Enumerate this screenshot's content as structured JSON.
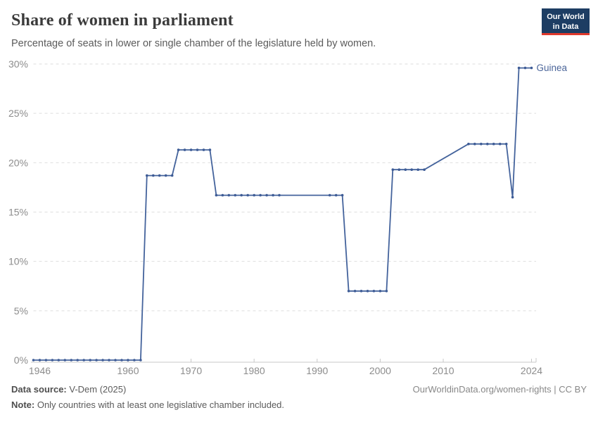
{
  "header": {
    "title": "Share of women in parliament",
    "subtitle": "Percentage of seats in lower or single chamber of the legislature held by women.",
    "logo_line1": "Our World",
    "logo_line2": "in Data"
  },
  "chart_data": {
    "type": "line",
    "title": "Share of women in parliament",
    "xlabel": "",
    "ylabel": "",
    "xlim": [
      1945,
      2024
    ],
    "ylim": [
      0,
      30
    ],
    "grid": true,
    "legend_position": "end-of-line",
    "x_ticks": [
      1946,
      1960,
      1970,
      1980,
      1990,
      2000,
      2010,
      2024
    ],
    "y_ticks": [
      0,
      5,
      10,
      15,
      20,
      25,
      30
    ],
    "y_tick_suffix": "%",
    "series": [
      {
        "name": "Guinea",
        "points": [
          [
            1945,
            0
          ],
          [
            1946,
            0
          ],
          [
            1947,
            0
          ],
          [
            1948,
            0
          ],
          [
            1949,
            0
          ],
          [
            1950,
            0
          ],
          [
            1951,
            0
          ],
          [
            1952,
            0
          ],
          [
            1953,
            0
          ],
          [
            1954,
            0
          ],
          [
            1955,
            0
          ],
          [
            1956,
            0
          ],
          [
            1957,
            0
          ],
          [
            1958,
            0
          ],
          [
            1959,
            0
          ],
          [
            1960,
            0
          ],
          [
            1961,
            0
          ],
          [
            1962,
            0
          ],
          [
            1963,
            18.7
          ],
          [
            1964,
            18.7
          ],
          [
            1965,
            18.7
          ],
          [
            1966,
            18.7
          ],
          [
            1967,
            18.7
          ],
          [
            1968,
            21.3
          ],
          [
            1969,
            21.3
          ],
          [
            1970,
            21.3
          ],
          [
            1971,
            21.3
          ],
          [
            1972,
            21.3
          ],
          [
            1973,
            21.3
          ],
          [
            1974,
            16.7
          ],
          [
            1975,
            16.7
          ],
          [
            1976,
            16.7
          ],
          [
            1977,
            16.7
          ],
          [
            1978,
            16.7
          ],
          [
            1979,
            16.7
          ],
          [
            1980,
            16.7
          ],
          [
            1981,
            16.7
          ],
          [
            1982,
            16.7
          ],
          [
            1983,
            16.7
          ],
          [
            1984,
            16.7
          ],
          [
            1992,
            16.7
          ],
          [
            1993,
            16.7
          ],
          [
            1994,
            16.7
          ],
          [
            1995,
            7
          ],
          [
            1996,
            7
          ],
          [
            1997,
            7
          ],
          [
            1998,
            7
          ],
          [
            1999,
            7
          ],
          [
            2000,
            7
          ],
          [
            2001,
            7
          ],
          [
            2002,
            19.3
          ],
          [
            2003,
            19.3
          ],
          [
            2004,
            19.3
          ],
          [
            2005,
            19.3
          ],
          [
            2006,
            19.3
          ],
          [
            2007,
            19.3
          ],
          [
            2014,
            21.9
          ],
          [
            2015,
            21.9
          ],
          [
            2016,
            21.9
          ],
          [
            2017,
            21.9
          ],
          [
            2018,
            21.9
          ],
          [
            2019,
            21.9
          ],
          [
            2020,
            21.9
          ],
          [
            2021,
            16.5
          ],
          [
            2022,
            29.6
          ],
          [
            2023,
            29.6
          ],
          [
            2024,
            29.6
          ]
        ]
      }
    ],
    "colors": {
      "line": "#44639c",
      "marker": "#3e5c96",
      "grid": "#dedede",
      "axis": "#c8c8c8",
      "tick_label": "#8c8c8c",
      "entity_label": "#4c669a"
    }
  },
  "footer": {
    "datasource_label": "Data source:",
    "datasource_value": " V-Dem (2025)",
    "note_label": "Note:",
    "note_value": " Only countries with at least one legislative chamber included.",
    "link": "OurWorldinData.org/women-rights | CC BY"
  }
}
